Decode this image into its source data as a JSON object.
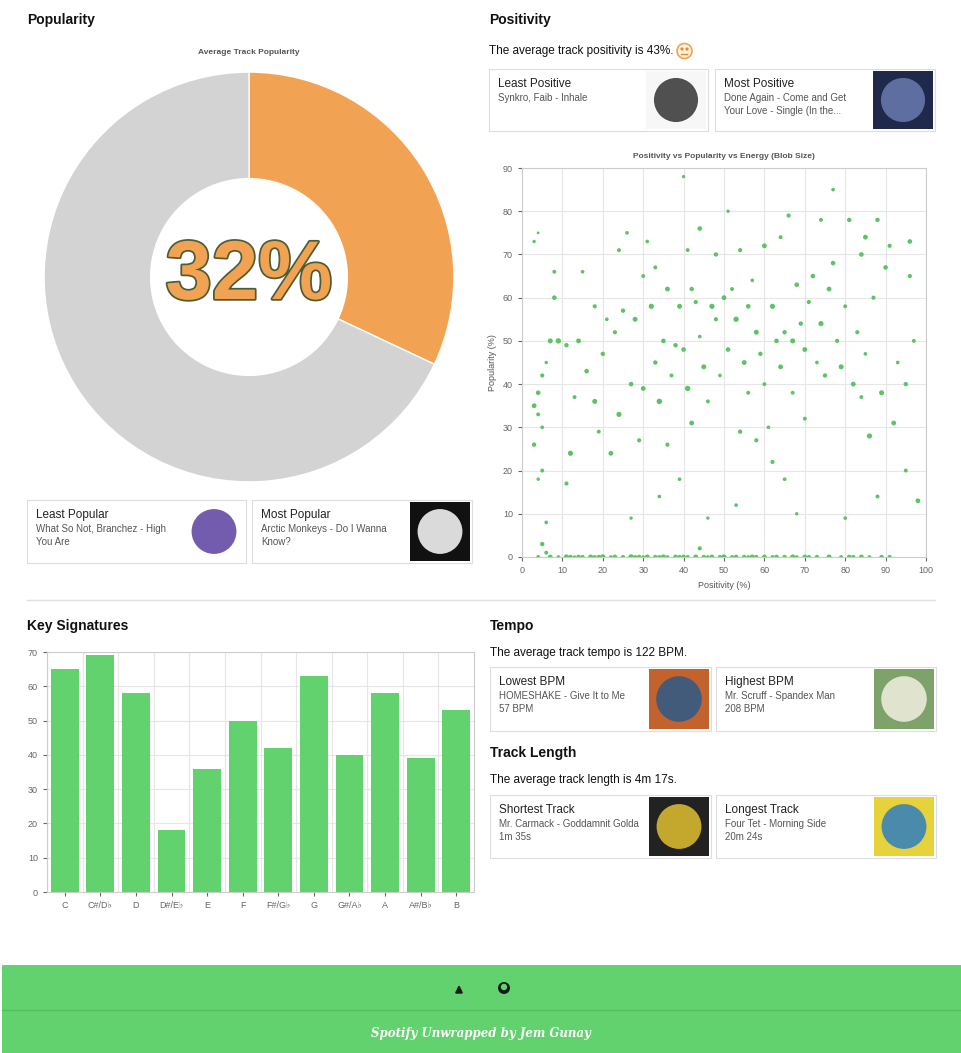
{
  "chart_data": [
    {
      "type": "donut",
      "title": "Average Track Popularity",
      "values": [
        32,
        68
      ],
      "colors": [
        "#f2a253",
        "#d3d3d3"
      ],
      "annotation": "32%"
    },
    {
      "type": "scatter",
      "title": "Positivity vs Popularity vs Energy (Blob Size)",
      "x_label": "Positivity (%)",
      "y_label": "Popularity (%)",
      "color": "#5cc463",
      "x": [
        4,
        7,
        9,
        11,
        12,
        13,
        14,
        15,
        17,
        18,
        19,
        20,
        22,
        23,
        25,
        27,
        28,
        29,
        30,
        31,
        33,
        34,
        35,
        36,
        38,
        39,
        40,
        41,
        43,
        45,
        46,
        47,
        49,
        50,
        52,
        53,
        55,
        56,
        57,
        58,
        60,
        62,
        63,
        65,
        67,
        68,
        70,
        71,
        73,
        76,
        79,
        81,
        82,
        84,
        86,
        89,
        91,
        5,
        6,
        44,
        3,
        4,
        5,
        4,
        3,
        4,
        5,
        3,
        6,
        7,
        8,
        8,
        9,
        4,
        5,
        6,
        11,
        12,
        11,
        13,
        14,
        15,
        16,
        18,
        18,
        19,
        20,
        21,
        22,
        23,
        24,
        24,
        25,
        26,
        27,
        27,
        28,
        29,
        30,
        30,
        31,
        32,
        33,
        33,
        34,
        34,
        35,
        36,
        36,
        37,
        38,
        39,
        39,
        40,
        40,
        41,
        41,
        42,
        42,
        43,
        44,
        44,
        45,
        46,
        46,
        47,
        48,
        48,
        49,
        50,
        51,
        51,
        52,
        53,
        53,
        54,
        54,
        55,
        56,
        56,
        57,
        58,
        58,
        59,
        60,
        60,
        61,
        62,
        62,
        63,
        64,
        64,
        65,
        65,
        66,
        67,
        67,
        68,
        68,
        69,
        70,
        70,
        71,
        72,
        73,
        74,
        74,
        75,
        76,
        77,
        77,
        78,
        79,
        80,
        80,
        81,
        82,
        83,
        84,
        84,
        85,
        85,
        86,
        87,
        88,
        88,
        89,
        90,
        91,
        92,
        93,
        95,
        95,
        96,
        96,
        97,
        98
      ],
      "values": [
        0,
        0,
        0,
        0,
        0,
        0,
        0,
        0,
        0,
        0,
        0,
        0,
        0,
        0,
        0,
        0,
        0,
        0,
        0,
        0,
        0,
        0,
        0,
        0,
        0,
        0,
        0,
        0,
        0,
        0,
        0,
        0,
        0,
        0,
        0,
        0,
        0,
        0,
        0,
        0,
        0,
        0,
        0,
        0,
        0,
        0,
        0,
        0,
        0,
        0,
        0,
        0,
        0,
        0,
        0,
        0,
        0,
        3,
        1,
        2,
        73,
        75,
        42,
        38,
        35,
        33,
        30,
        26,
        45,
        50,
        66,
        60,
        50,
        18,
        20,
        8,
        49,
        24,
        17,
        37,
        50,
        66,
        43,
        58,
        36,
        29,
        47,
        55,
        24,
        52,
        71,
        33,
        57,
        75,
        40,
        9,
        55,
        27,
        65,
        39,
        73,
        58,
        45,
        67,
        36,
        14,
        50,
        26,
        62,
        42,
        49,
        58,
        18,
        88,
        48,
        39,
        71,
        62,
        31,
        59,
        51,
        76,
        44,
        36,
        9,
        58,
        55,
        70,
        42,
        60,
        80,
        48,
        62,
        55,
        12,
        29,
        71,
        45,
        38,
        58,
        64,
        52,
        27,
        47,
        40,
        72,
        30,
        58,
        22,
        50,
        74,
        44,
        52,
        18,
        79,
        50,
        38,
        63,
        10,
        54,
        48,
        32,
        59,
        65,
        45,
        54,
        78,
        42,
        62,
        85,
        68,
        50,
        44,
        58,
        9,
        78,
        40,
        52,
        37,
        70,
        47,
        74,
        28,
        60,
        78,
        14,
        38,
        67,
        72,
        31,
        45,
        20,
        40,
        73,
        65,
        50,
        13
      ],
      "sizes": [
        40,
        60,
        35,
        70,
        50,
        30,
        55,
        45,
        65,
        40,
        50,
        75,
        35,
        60,
        45,
        80,
        40,
        55,
        30,
        65,
        50,
        40,
        70,
        35,
        60,
        45,
        55,
        40,
        65,
        50,
        35,
        60,
        45,
        70,
        40,
        55,
        50,
        35,
        65,
        45,
        60,
        40,
        55,
        50,
        70,
        35,
        60,
        45,
        50,
        65,
        40,
        55,
        45,
        60,
        35,
        50,
        45,
        50,
        40,
        45,
        30,
        20,
        45,
        55,
        60,
        40,
        35,
        50,
        30,
        65,
        40,
        55,
        75,
        30,
        40,
        35,
        50,
        70,
        45,
        40,
        60,
        35,
        55,
        45,
        65,
        40,
        50,
        35,
        60,
        45,
        40,
        70,
        50,
        35,
        55,
        30,
        65,
        45,
        40,
        60,
        35,
        70,
        50,
        40,
        80,
        35,
        55,
        45,
        60,
        40,
        50,
        65,
        35,
        30,
        55,
        75,
        40,
        50,
        60,
        45,
        35,
        55,
        65,
        40,
        30,
        70,
        45,
        50,
        35,
        60,
        30,
        55,
        40,
        75,
        35,
        50,
        45,
        60,
        40,
        55,
        35,
        65,
        45,
        50,
        40,
        60,
        35,
        70,
        45,
        55,
        40,
        60,
        50,
        35,
        45,
        65,
        40,
        55,
        30,
        50,
        60,
        40,
        45,
        55,
        35,
        70,
        40,
        50,
        60,
        35,
        55,
        45,
        65,
        40,
        35,
        50,
        60,
        45,
        40,
        55,
        35,
        60,
        70,
        45,
        50,
        40,
        65,
        55,
        45,
        60,
        35,
        40,
        50,
        55,
        45,
        40,
        60
      ],
      "xlim": [
        0,
        100
      ],
      "xticks": [
        0,
        10,
        20,
        30,
        40,
        50,
        60,
        70,
        80,
        90,
        100
      ],
      "ylim": [
        0,
        90
      ],
      "yticks": [
        0,
        10,
        20,
        30,
        40,
        50,
        60,
        70,
        80,
        90
      ],
      "grid": true
    },
    {
      "type": "bar",
      "categories": [
        "C",
        "C#/D♭",
        "D",
        "D#/E♭",
        "E",
        "F",
        "F#/G♭",
        "G",
        "G#/A♭",
        "A",
        "A#/B♭",
        "B"
      ],
      "values": [
        65,
        69,
        58,
        18,
        36,
        50,
        42,
        63,
        40,
        58,
        39,
        53
      ],
      "color": "#62d26f",
      "ylim": [
        0,
        70
      ],
      "yticks": [
        0,
        10,
        20,
        30,
        40,
        50,
        60,
        70
      ],
      "grid": true
    }
  ],
  "headings": {
    "popularity": "Popularity",
    "positivity": "Positivity",
    "keys": "Key Signatures",
    "tempo": "Tempo",
    "length": "Track Length"
  },
  "summaries": {
    "positivity": "The average track positivity is 43%.",
    "tempo": "The average track tempo is 122 BPM.",
    "length": "The average track length is 4m 17s."
  },
  "cards": [
    {
      "title": "Least Popular",
      "text": "What So Not, Branchez - High You Are"
    },
    {
      "title": "Most Popular",
      "text": "Arctic Monkeys - Do I Wanna Know?"
    },
    {
      "title": "Least Positive",
      "text": "Synkro, Faib - Inhale"
    },
    {
      "title": "Most Positive",
      "text": "Done Again - Come and Get Your Love - Single (In the..."
    },
    {
      "title": "Lowest BPM",
      "text": "HOMESHAKE - Give It to Me",
      "detail": "57 BPM"
    },
    {
      "title": "Highest BPM",
      "text": "Mr. Scruff - Spandex Man",
      "detail": "208 BPM"
    },
    {
      "title": "Shortest Track",
      "text": "Mr. Carmack - Goddamnit Golda",
      "detail": "1m 35s"
    },
    {
      "title": "Longest Track",
      "text": "Four Tet - Morning Side",
      "detail": "20m 24s"
    }
  ],
  "footer": "Spotify Unwrapped by Jem Gunay"
}
